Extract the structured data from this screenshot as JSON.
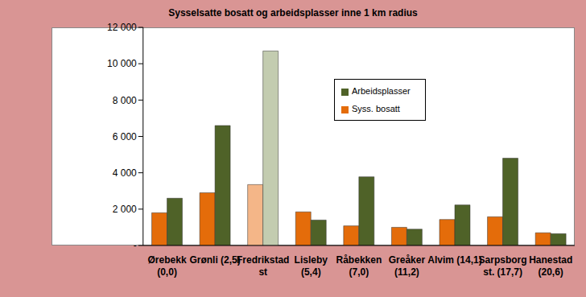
{
  "chart_data": {
    "type": "bar",
    "title": "Sysselsatte bosatt og arbeidsplasser inne 1 km radius",
    "categories": [
      "Ørebekk (0,0)",
      "Grønli (2,5)",
      "Fredrikstad st",
      "Lisleby (5,4)",
      "Råbekken (7,0)",
      "Greåker (11,2)",
      "Alvim (14,1)",
      "Sarpsborg st. (17,7)",
      "Hanestad (20,6)"
    ],
    "series": [
      {
        "name": "Syss. bosatt",
        "color": "#E46C0A",
        "colors": [
          "#E46C0A",
          "#E46C0A",
          "#F4B688",
          "#E46C0A",
          "#E46C0A",
          "#E46C0A",
          "#E46C0A",
          "#E46C0A",
          "#E46C0A"
        ],
        "values": [
          1800,
          2900,
          3350,
          1850,
          1080,
          1000,
          1430,
          1580,
          700
        ]
      },
      {
        "name": "Arbeidsplasser",
        "color": "#4F6228",
        "colors": [
          "#4F6228",
          "#4F6228",
          "#C3CCB0",
          "#4F6228",
          "#4F6228",
          "#4F6228",
          "#4F6228",
          "#4F6228",
          "#4F6228"
        ],
        "values": [
          2600,
          6600,
          10700,
          1400,
          3780,
          900,
          2230,
          4800,
          650
        ]
      }
    ],
    "ylim": [
      0,
      12000
    ],
    "yticks": [
      {
        "value": 0,
        "label": "-"
      },
      {
        "value": 2000,
        "label": "2 000"
      },
      {
        "value": 4000,
        "label": "4 000"
      },
      {
        "value": 6000,
        "label": "6 000"
      },
      {
        "value": 8000,
        "label": "8 000"
      },
      {
        "value": 10000,
        "label": "10 000"
      },
      {
        "value": 12000,
        "label": "12 000"
      }
    ],
    "grid": false,
    "legend": "top"
  }
}
